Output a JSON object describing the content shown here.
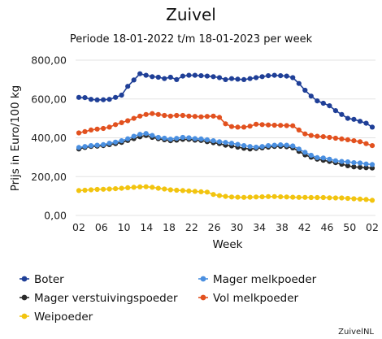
{
  "chart_data": {
    "type": "line",
    "title": "Zuivel",
    "subtitle": "Periode 18-01-2022 t/m 18-01-2023 per week",
    "ylabel": "Prijs in Euro/100 kg",
    "xlabel": "Week",
    "ylim": [
      0,
      800
    ],
    "yticks": [
      "0,00",
      "200,00",
      "400,00",
      "600,00",
      "800,00"
    ],
    "xticks": [
      "02",
      "06",
      "10",
      "14",
      "18",
      "22",
      "26",
      "30",
      "34",
      "38",
      "42",
      "46",
      "50",
      "02"
    ],
    "grid": "horizontal",
    "legend_position": "bottom",
    "source": "ZuivelNL",
    "series": [
      {
        "name": "Boter",
        "color": "#1f3f97",
        "values": [
          608,
          607,
          598,
          595,
          596,
          598,
          608,
          620,
          665,
          698,
          730,
          722,
          715,
          712,
          705,
          712,
          700,
          718,
          722,
          722,
          720,
          718,
          715,
          710,
          700,
          705,
          702,
          700,
          705,
          710,
          715,
          720,
          722,
          720,
          718,
          710,
          680,
          645,
          615,
          590,
          578,
          565,
          540,
          520,
          500,
          495,
          485,
          475,
          455
        ]
      },
      {
        "name": "Mager melkpoeder",
        "color": "#4a8fe0",
        "values": [
          350,
          355,
          360,
          362,
          365,
          372,
          378,
          385,
          395,
          408,
          418,
          422,
          412,
          402,
          398,
          393,
          397,
          402,
          400,
          396,
          394,
          390,
          385,
          380,
          376,
          372,
          366,
          360,
          355,
          352,
          355,
          360,
          362,
          364,
          362,
          358,
          342,
          325,
          310,
          298,
          296,
          290,
          282,
          278,
          276,
          272,
          270,
          265,
          262
        ]
      },
      {
        "name": "Mager verstuivingspoeder",
        "color": "#2b2b2b",
        "values": [
          342,
          350,
          355,
          357,
          360,
          365,
          370,
          376,
          386,
          396,
          405,
          412,
          402,
          395,
          390,
          385,
          388,
          392,
          392,
          388,
          386,
          380,
          375,
          370,
          362,
          358,
          352,
          346,
          342,
          345,
          348,
          352,
          355,
          356,
          354,
          348,
          330,
          312,
          300,
          290,
          284,
          278,
          272,
          264,
          256,
          250,
          248,
          246,
          244
        ]
      },
      {
        "name": "Vol melkpoeder",
        "color": "#e2511f",
        "values": [
          425,
          432,
          440,
          445,
          448,
          455,
          468,
          478,
          488,
          500,
          512,
          520,
          525,
          520,
          515,
          512,
          515,
          515,
          512,
          510,
          508,
          510,
          512,
          505,
          472,
          458,
          455,
          455,
          460,
          470,
          468,
          466,
          465,
          464,
          463,
          462,
          440,
          420,
          412,
          408,
          406,
          402,
          398,
          394,
          390,
          385,
          380,
          370,
          360
        ]
      },
      {
        "name": "Weipoeder",
        "color": "#f2c40f",
        "values": [
          128,
          130,
          132,
          134,
          135,
          136,
          138,
          140,
          143,
          145,
          147,
          148,
          145,
          140,
          136,
          132,
          130,
          128,
          126,
          124,
          122,
          120,
          108,
          102,
          98,
          95,
          94,
          93,
          94,
          95,
          96,
          97,
          97,
          96,
          95,
          94,
          93,
          93,
          92,
          92,
          92,
          91,
          90,
          90,
          88,
          86,
          84,
          82,
          78
        ]
      }
    ]
  }
}
